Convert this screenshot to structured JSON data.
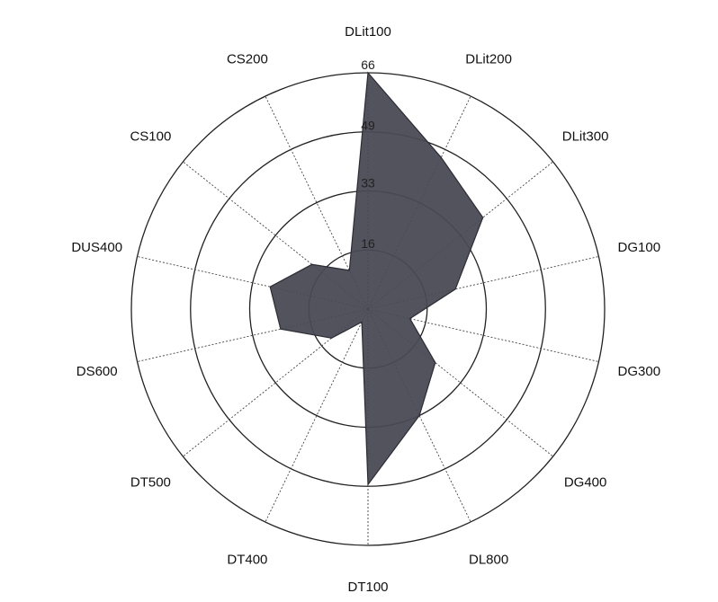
{
  "chart_data": {
    "type": "radar",
    "axes": [
      "DLit100",
      "DLit200",
      "DLit300",
      "DG100",
      "DG300",
      "DG400",
      "DL800",
      "DT100",
      "DT400",
      "DT500",
      "DS600",
      "DUS400",
      "CS100",
      "CS200"
    ],
    "values": [
      66,
      47,
      41,
      25,
      12,
      24,
      33,
      49,
      4,
      13,
      25,
      28,
      20,
      12
    ],
    "rmax": 66,
    "ticks": [
      "66",
      "49",
      "33",
      "16"
    ],
    "tick_values": [
      66,
      49,
      33,
      16
    ],
    "fill_color": "#4a4a55",
    "grid": true
  }
}
